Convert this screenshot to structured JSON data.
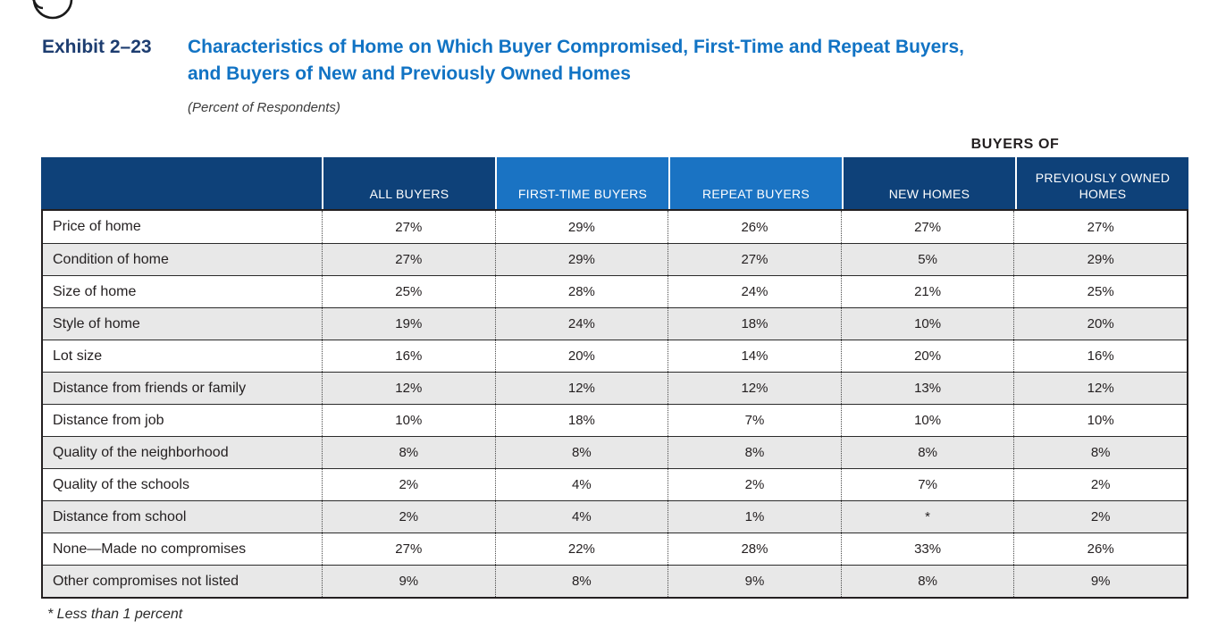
{
  "exhibit": {
    "label": "Exhibit 2–23",
    "title_line1": "Characteristics of Home on Which Buyer Compromised, First-Time and Repeat Buyers,",
    "title_line2": "and Buyers of New and Previously Owned Homes",
    "subtitle": "(Percent of Respondents)"
  },
  "table": {
    "group_header": "BUYERS OF",
    "columns": [
      "ALL BUYERS",
      "FIRST-TIME BUYERS",
      "REPEAT BUYERS",
      "NEW HOMES",
      "PREVIOUSLY OWNED HOMES"
    ],
    "rows": [
      {
        "label": "Price of home",
        "values": [
          "27%",
          "29%",
          "26%",
          "27%",
          "27%"
        ]
      },
      {
        "label": "Condition of home",
        "values": [
          "27%",
          "29%",
          "27%",
          "5%",
          "29%"
        ]
      },
      {
        "label": "Size of home",
        "values": [
          "25%",
          "28%",
          "24%",
          "21%",
          "25%"
        ]
      },
      {
        "label": "Style of home",
        "values": [
          "19%",
          "24%",
          "18%",
          "10%",
          "20%"
        ]
      },
      {
        "label": "Lot size",
        "values": [
          "16%",
          "20%",
          "14%",
          "20%",
          "16%"
        ]
      },
      {
        "label": "Distance from friends or family",
        "values": [
          "12%",
          "12%",
          "12%",
          "13%",
          "12%"
        ]
      },
      {
        "label": "Distance from job",
        "values": [
          "10%",
          "18%",
          "7%",
          "10%",
          "10%"
        ]
      },
      {
        "label": "Quality of the neighborhood",
        "values": [
          "8%",
          "8%",
          "8%",
          "8%",
          "8%"
        ]
      },
      {
        "label": "Quality of the schools",
        "values": [
          "2%",
          "4%",
          "2%",
          "7%",
          "2%"
        ]
      },
      {
        "label": "Distance from school",
        "values": [
          "2%",
          "4%",
          "1%",
          "*",
          "2%"
        ]
      },
      {
        "label": "None—Made no compromises",
        "values": [
          "27%",
          "22%",
          "28%",
          "33%",
          "26%"
        ]
      },
      {
        "label": "Other compromises not listed",
        "values": [
          "9%",
          "8%",
          "9%",
          "8%",
          "9%"
        ]
      }
    ]
  },
  "footnote": "*  Less than 1 percent",
  "colors": {
    "header_navy": "#0e4179",
    "header_light_blue": "#1a73c3",
    "title_blue": "#1173c4",
    "exhibit_label_navy": "#1d3d70",
    "alt_row_gray": "#e8e8e8",
    "text_dark": "#231f20"
  }
}
